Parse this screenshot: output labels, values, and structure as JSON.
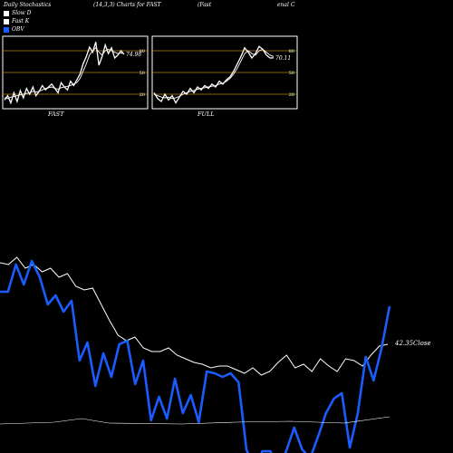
{
  "header": {
    "title_left": "Daily Stochastics",
    "title_mid": "(14,3,3) Charts for FAST",
    "title_right_a": "(Fast",
    "title_right_b": "enal C"
  },
  "legend": [
    {
      "label": "Slow  D",
      "color": "#ffffff"
    },
    {
      "label": "Fast K",
      "color": "#ffffff"
    },
    {
      "label": "OBV",
      "color": "#1a5cff"
    }
  ],
  "colors": {
    "background": "#000000",
    "obv": "#1a5cff",
    "price": "#ffffff",
    "panel_border": "#ffffff",
    "stoch_grid": "#b8860b"
  },
  "chart_data": [
    {
      "type": "line",
      "panel": "FAST",
      "label": "FAST",
      "ylim": [
        0,
        100
      ],
      "yticks": [
        20,
        50,
        80
      ],
      "value_label": "74.98",
      "series": [
        {
          "name": "Fast K",
          "values": [
            12,
            18,
            8,
            22,
            10,
            25,
            15,
            28,
            20,
            30,
            18,
            24,
            32,
            26,
            30,
            34,
            28,
            22,
            36,
            30,
            26,
            38,
            32,
            40,
            48,
            62,
            72,
            85,
            78,
            92,
            60,
            72,
            88,
            76,
            84,
            70,
            74,
            80,
            74.98
          ]
        },
        {
          "name": "Slow  D",
          "values": [
            15,
            14,
            16,
            17,
            18,
            19,
            20,
            21,
            22,
            24,
            23,
            24,
            26,
            28,
            29,
            30,
            28,
            27,
            29,
            30,
            31,
            32,
            34,
            36,
            42,
            52,
            62,
            74,
            80,
            84,
            78,
            74,
            80,
            82,
            80,
            78,
            76,
            77,
            76
          ]
        }
      ]
    },
    {
      "type": "line",
      "panel": "FULL",
      "label": "FULL",
      "ylim": [
        0,
        100
      ],
      "yticks": [
        20,
        50,
        80
      ],
      "value_label": "70.11",
      "series": [
        {
          "name": "Fast K",
          "values": [
            22,
            14,
            10,
            20,
            12,
            18,
            8,
            16,
            24,
            20,
            28,
            22,
            30,
            26,
            32,
            28,
            34,
            30,
            38,
            34,
            40,
            44,
            52,
            62,
            72,
            84,
            78,
            70,
            76,
            86,
            82,
            74,
            70,
            70.11
          ]
        },
        {
          "name": "Slow  D",
          "values": [
            20,
            18,
            16,
            15,
            16,
            14,
            15,
            17,
            20,
            22,
            24,
            25,
            27,
            28,
            29,
            30,
            31,
            32,
            34,
            35,
            38,
            42,
            48,
            56,
            66,
            76,
            80,
            76,
            74,
            80,
            82,
            78,
            74,
            72
          ]
        }
      ]
    },
    {
      "type": "line",
      "panel": "main",
      "value_label": "42.35",
      "value_label_suffix": "Close",
      "series": [
        {
          "name": "Close",
          "values": [
            290,
            292,
            284,
            296,
            292,
            300,
            296,
            306,
            302,
            316,
            320,
            318,
            336,
            354,
            370,
            376,
            372,
            384,
            388,
            388,
            384,
            392,
            396,
            400,
            402,
            406,
            404,
            404,
            408,
            412,
            406,
            414,
            410,
            400,
            392,
            406,
            402,
            410,
            396,
            404,
            410,
            396,
            398,
            404,
            392,
            382,
            380
          ]
        },
        {
          "name": "OBV",
          "values": [
            322,
            322,
            292,
            314,
            288,
            306,
            336,
            326,
            344,
            332,
            398,
            378,
            426,
            390,
            416,
            380,
            376,
            424,
            398,
            464,
            438,
            462,
            418,
            456,
            436,
            466,
            410,
            412,
            416,
            412,
            422,
            496,
            520,
            498,
            498,
            518,
            498,
            472,
            496,
            506,
            482,
            456,
            440,
            434,
            494,
            456,
            394,
            420,
            384,
            338
          ]
        }
      ]
    }
  ]
}
